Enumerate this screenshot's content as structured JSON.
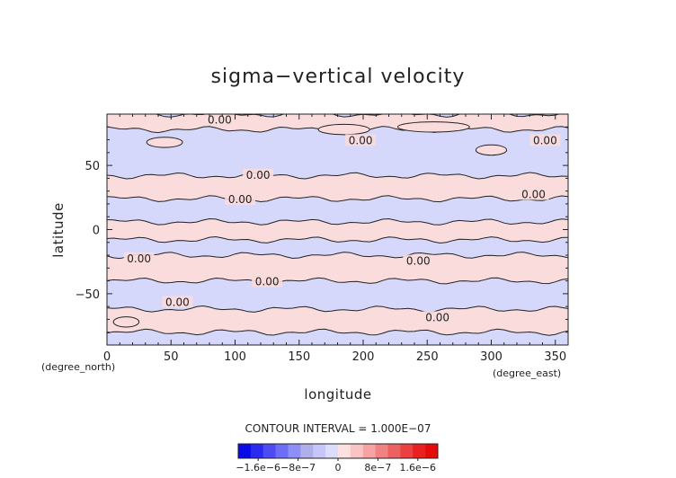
{
  "chart_data": {
    "type": "heatmap",
    "title": "sigma−vertical velocity",
    "xlabel": "longitude",
    "ylabel": "latitude",
    "x_unit": "(degree_east)",
    "y_unit": "(degree_north)",
    "xlim": [
      0,
      360
    ],
    "ylim": [
      -90,
      90
    ],
    "x_ticks": [
      0,
      50,
      100,
      150,
      200,
      250,
      300,
      350
    ],
    "y_ticks": [
      -50,
      0,
      50
    ],
    "y_tick_labels": [
      "−50",
      "0",
      "50"
    ],
    "contour_level": 0.0,
    "contour_label": "0.00",
    "contour_labels": [
      {
        "lon": 88,
        "lat": 84,
        "text": "0.00"
      },
      {
        "lon": 198,
        "lat": 68,
        "text": "0.00"
      },
      {
        "lon": 342,
        "lat": 68,
        "text": "0.00"
      },
      {
        "lon": 118,
        "lat": 41,
        "text": "0.00"
      },
      {
        "lon": 104,
        "lat": 22,
        "text": "0.00"
      },
      {
        "lon": 333,
        "lat": 26,
        "text": "0.00"
      },
      {
        "lon": 25,
        "lat": -24,
        "text": "0.00"
      },
      {
        "lon": 243,
        "lat": -26,
        "text": "0.00"
      },
      {
        "lon": 125,
        "lat": -42,
        "text": "0.00"
      },
      {
        "lon": 55,
        "lat": -58,
        "text": "0.00"
      },
      {
        "lon": 258,
        "lat": -70,
        "text": "0.00"
      }
    ],
    "bands": [
      {
        "lat_range": [
          78,
          90
        ],
        "sign": "positive"
      },
      {
        "lat_range": [
          42,
          78
        ],
        "sign": "negative"
      },
      {
        "lat_range": [
          24,
          42
        ],
        "sign": "positive"
      },
      {
        "lat_range": [
          6,
          24
        ],
        "sign": "negative"
      },
      {
        "lat_range": [
          -8,
          6
        ],
        "sign": "positive"
      },
      {
        "lat_range": [
          -20,
          -8
        ],
        "sign": "negative"
      },
      {
        "lat_range": [
          -40,
          -20
        ],
        "sign": "positive"
      },
      {
        "lat_range": [
          -62,
          -40
        ],
        "sign": "negative"
      },
      {
        "lat_range": [
          -80,
          -62
        ],
        "sign": "positive"
      },
      {
        "lat_range": [
          -90,
          -80
        ],
        "sign": "negative"
      }
    ],
    "contour_interval_text": "CONTOUR INTERVAL = 1.000E−07",
    "colorbar": {
      "levels": [
        "−1.6e−6",
        "−8e−7",
        "0",
        "8e−7",
        "1.6e−6"
      ],
      "tick_positions": [
        -1.6e-06,
        -8e-07,
        0,
        8e-07,
        1.6e-06
      ],
      "range": [
        -2e-06,
        2e-06
      ],
      "colors": [
        "#0a0ae6",
        "#2b2bef",
        "#4c4cf2",
        "#6d6df5",
        "#8e8ef7",
        "#afafe9",
        "#c6c6fb",
        "#dcdcfd",
        "#fde0e0",
        "#fbc4c4",
        "#f5a3a3",
        "#f08282",
        "#ec6161",
        "#ea4040",
        "#e82020",
        "#e60a0a"
      ]
    }
  },
  "colors": {
    "negative_fill": "#d5d7fb",
    "positive_fill": "#fbdcdc",
    "contour_line": "#222222"
  }
}
